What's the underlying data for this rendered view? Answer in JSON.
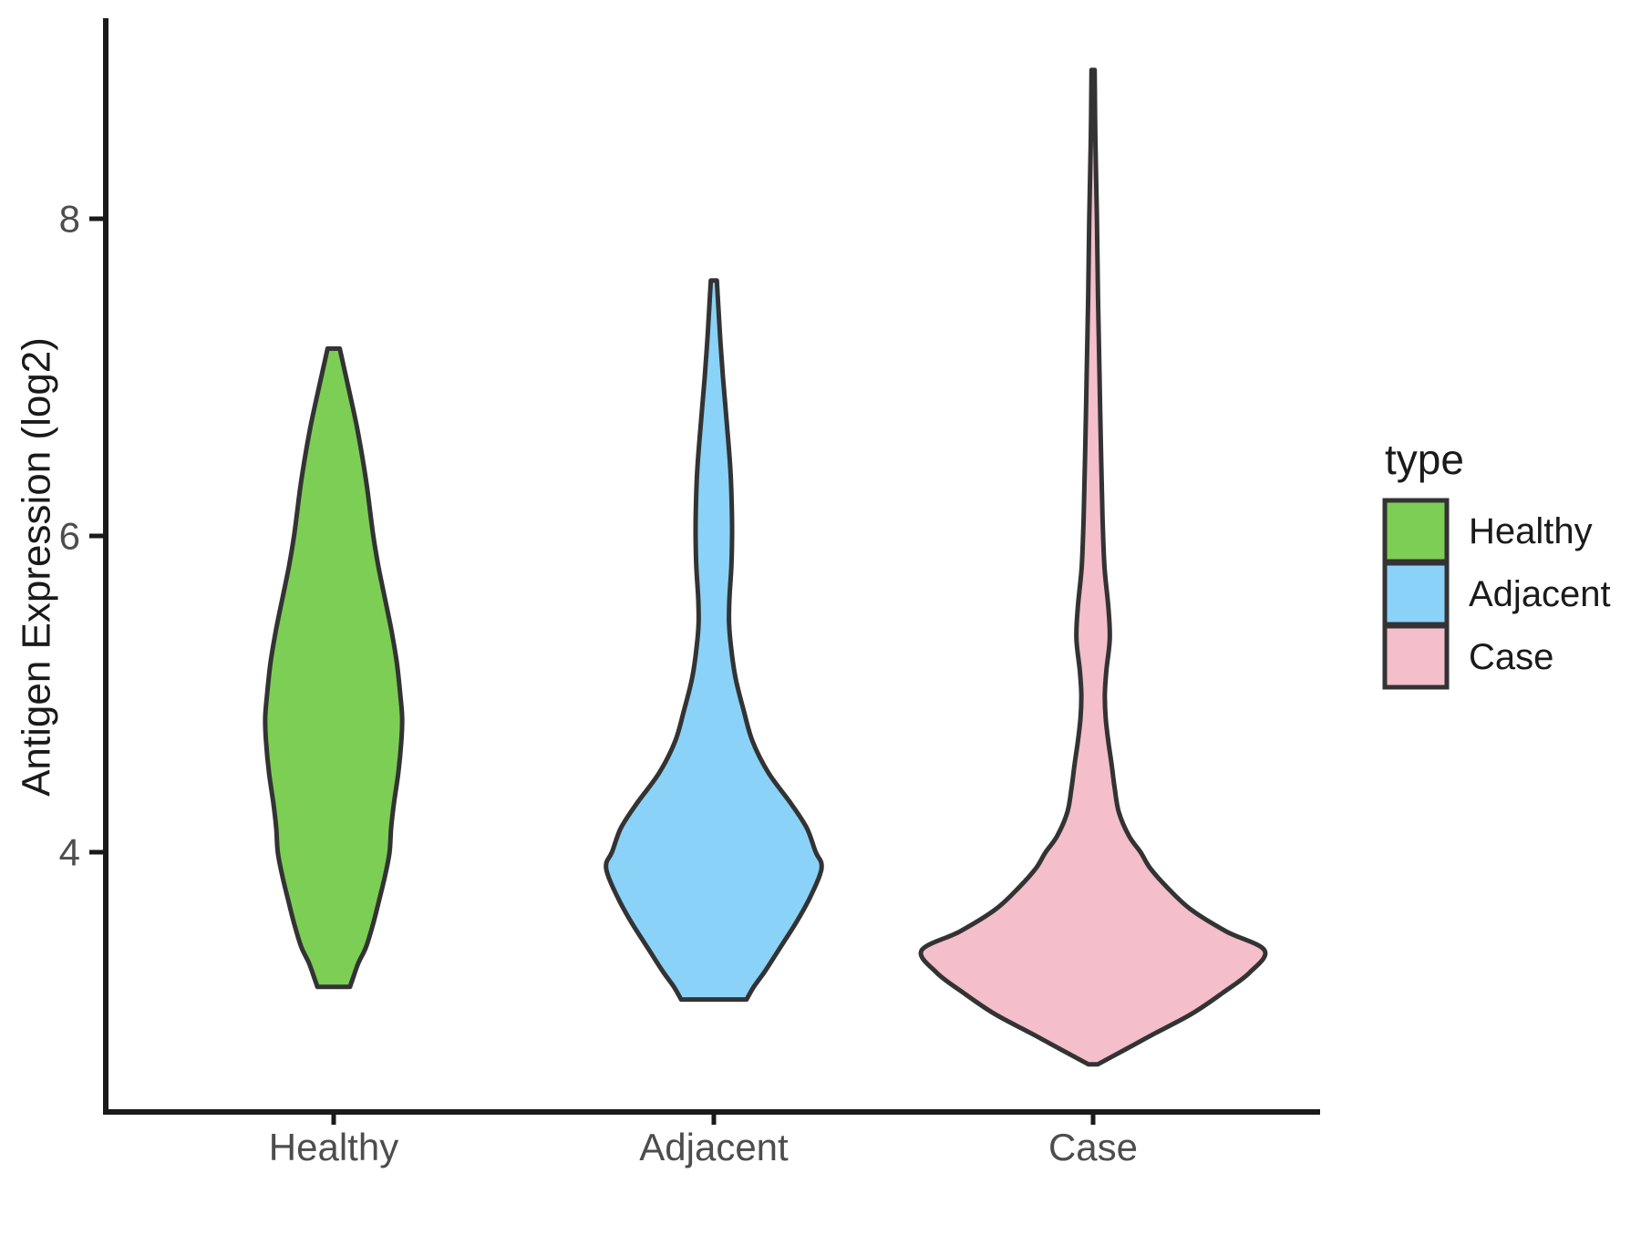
{
  "figure": {
    "background": "#FFFFFF",
    "axis_line_color": "#1A1A1A",
    "tick_label_color": "#4D4D4D",
    "violin_stroke_color": "#333333"
  },
  "chart_data": {
    "type": "violin",
    "title": "",
    "xlabel": "",
    "ylabel": "Antigen Expression (log2)",
    "ylim": [
      2.4,
      9.2
    ],
    "grid": "off",
    "legend_position": "right",
    "y_ticks": [
      {
        "label": "8",
        "value": 8
      },
      {
        "label": "6",
        "value": 6
      },
      {
        "label": "4",
        "value": 4
      }
    ],
    "categories": [
      {
        "label": "Healthy"
      },
      {
        "label": "Adjacent"
      },
      {
        "label": "Case"
      }
    ],
    "legend": {
      "title": "type",
      "items": [
        {
          "label": "Healthy",
          "color": "#7DCE55"
        },
        {
          "label": "Adjacent",
          "color": "#8BD2F8"
        },
        {
          "label": "Case",
          "color": "#F4BECB"
        }
      ]
    },
    "series": [
      {
        "name": "Healthy",
        "fill": "#7DCE55",
        "min": 3.15,
        "max": 7.18,
        "peak_value": 4.85,
        "peak_halfwidth": 0.18,
        "profile": [
          [
            7.18,
            0.016
          ],
          [
            7.05,
            0.028
          ],
          [
            6.9,
            0.042
          ],
          [
            6.7,
            0.06
          ],
          [
            6.5,
            0.075
          ],
          [
            6.3,
            0.088
          ],
          [
            6.0,
            0.104
          ],
          [
            5.8,
            0.118
          ],
          [
            5.6,
            0.135
          ],
          [
            5.4,
            0.152
          ],
          [
            5.2,
            0.166
          ],
          [
            5.0,
            0.175
          ],
          [
            4.85,
            0.18
          ],
          [
            4.7,
            0.178
          ],
          [
            4.5,
            0.17
          ],
          [
            4.3,
            0.158
          ],
          [
            4.15,
            0.151
          ],
          [
            4.0,
            0.147
          ],
          [
            3.85,
            0.135
          ],
          [
            3.7,
            0.12
          ],
          [
            3.55,
            0.104
          ],
          [
            3.4,
            0.085
          ],
          [
            3.3,
            0.065
          ],
          [
            3.2,
            0.05
          ],
          [
            3.15,
            0.043
          ]
        ]
      },
      {
        "name": "Adjacent",
        "fill": "#8BD2F8",
        "min": 3.07,
        "max": 7.61,
        "peak_value": 3.93,
        "peak_halfwidth": 0.283,
        "profile": [
          [
            7.61,
            0.008
          ],
          [
            7.4,
            0.013
          ],
          [
            7.2,
            0.018
          ],
          [
            7.0,
            0.024
          ],
          [
            6.8,
            0.031
          ],
          [
            6.6,
            0.038
          ],
          [
            6.4,
            0.044
          ],
          [
            6.2,
            0.047
          ],
          [
            6.0,
            0.048
          ],
          [
            5.8,
            0.046
          ],
          [
            5.6,
            0.041
          ],
          [
            5.45,
            0.04
          ],
          [
            5.3,
            0.045
          ],
          [
            5.1,
            0.057
          ],
          [
            4.9,
            0.078
          ],
          [
            4.7,
            0.102
          ],
          [
            4.5,
            0.144
          ],
          [
            4.3,
            0.205
          ],
          [
            4.15,
            0.245
          ],
          [
            4.0,
            0.268
          ],
          [
            3.93,
            0.283
          ],
          [
            3.85,
            0.278
          ],
          [
            3.7,
            0.25
          ],
          [
            3.55,
            0.215
          ],
          [
            3.4,
            0.175
          ],
          [
            3.25,
            0.135
          ],
          [
            3.15,
            0.105
          ],
          [
            3.07,
            0.086
          ]
        ]
      },
      {
        "name": "Case",
        "fill": "#F4BECB",
        "min": 2.66,
        "max": 8.94,
        "peak_value": 3.38,
        "peak_halfwidth": 0.451,
        "profile": [
          [
            8.94,
            0.004
          ],
          [
            8.5,
            0.006
          ],
          [
            8.0,
            0.01
          ],
          [
            7.5,
            0.013
          ],
          [
            7.0,
            0.017
          ],
          [
            6.5,
            0.021
          ],
          [
            6.1,
            0.025
          ],
          [
            5.8,
            0.03
          ],
          [
            5.55,
            0.04
          ],
          [
            5.35,
            0.044
          ],
          [
            5.15,
            0.035
          ],
          [
            5.0,
            0.031
          ],
          [
            4.85,
            0.033
          ],
          [
            4.7,
            0.04
          ],
          [
            4.55,
            0.049
          ],
          [
            4.4,
            0.057
          ],
          [
            4.25,
            0.068
          ],
          [
            4.1,
            0.095
          ],
          [
            4.0,
            0.125
          ],
          [
            3.9,
            0.15
          ],
          [
            3.78,
            0.194
          ],
          [
            3.64,
            0.256
          ],
          [
            3.5,
            0.35
          ],
          [
            3.38,
            0.451
          ],
          [
            3.24,
            0.412
          ],
          [
            3.11,
            0.34
          ],
          [
            2.98,
            0.26
          ],
          [
            2.86,
            0.166
          ],
          [
            2.76,
            0.089
          ],
          [
            2.66,
            0.012
          ]
        ]
      }
    ]
  }
}
